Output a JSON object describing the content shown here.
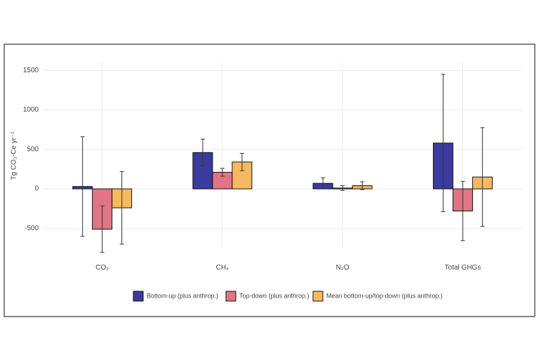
{
  "chart_data": {
    "type": "bar",
    "y_label": "Tg CO₂-Ce yr⁻¹",
    "categories": [
      "CO₂",
      "CH₄",
      "N₂O",
      "Total GHGs"
    ],
    "series": [
      {
        "name": "Bottom-up (plus anthrop.)",
        "color": "#3b3b9c",
        "values": [
          30,
          460,
          70,
          580
        ],
        "errors": [
          630,
          170,
          70,
          870
        ]
      },
      {
        "name": "Top-down (plus anthrop.)",
        "color": "#e07585",
        "values": [
          -510,
          210,
          10,
          -280
        ],
        "errors": [
          295,
          50,
          30,
          375
        ]
      },
      {
        "name": "Mean bottom-up/top-down (plus anthrop.)",
        "color": "#f6b95f",
        "values": [
          -240,
          340,
          40,
          150
        ],
        "errors": [
          460,
          110,
          50,
          625
        ]
      }
    ],
    "ylim": [
      -750,
      1600
    ],
    "yticks": [
      -500,
      0,
      500,
      1000,
      1500
    ],
    "grid": true
  }
}
